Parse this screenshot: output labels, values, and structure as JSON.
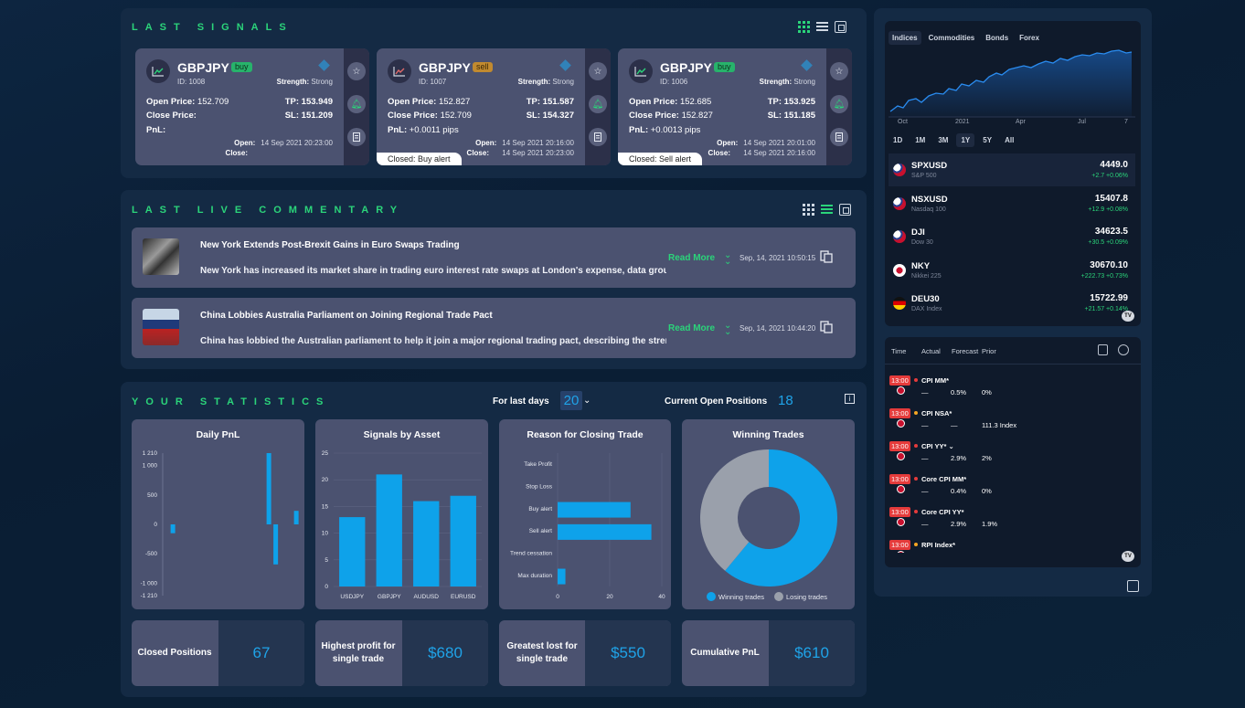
{
  "signals": {
    "title": "LAST SIGNALS",
    "cards": [
      {
        "pair": "GBPJPY",
        "type": "buy",
        "id": "ID: 1008",
        "strength_label": "Strength:",
        "strength": "Strong",
        "open_label": "Open Price:",
        "open": "152.709",
        "tp_label": "TP:",
        "tp": "153.949",
        "close_label": "Close Price:",
        "close": "",
        "sl_label": "SL:",
        "sl": "151.209",
        "pnl_label": "PnL:",
        "pnl": "",
        "open_time_label": "Open:",
        "open_time": "14 Sep 2021 20:23:00",
        "close_time_label": "Close:",
        "close_time": "",
        "closed_tag": ""
      },
      {
        "pair": "GBPJPY",
        "type": "sell",
        "id": "ID: 1007",
        "strength_label": "Strength:",
        "strength": "Strong",
        "open_label": "Open Price:",
        "open": "152.827",
        "tp_label": "TP:",
        "tp": "151.587",
        "close_label": "Close Price:",
        "close": "152.709",
        "sl_label": "SL:",
        "sl": "154.327",
        "pnl_label": "PnL:",
        "pnl": "+0.0011 pips",
        "open_time_label": "Open:",
        "open_time": "14 Sep 2021 20:16:00",
        "close_time_label": "Close:",
        "close_time": "14 Sep 2021 20:23:00",
        "closed_tag": "Closed: Buy alert"
      },
      {
        "pair": "GBPJPY",
        "type": "buy",
        "id": "ID: 1006",
        "strength_label": "Strength:",
        "strength": "Strong",
        "open_label": "Open Price:",
        "open": "152.685",
        "tp_label": "TP:",
        "tp": "153.925",
        "close_label": "Close Price:",
        "close": "152.827",
        "sl_label": "SL:",
        "sl": "151.185",
        "pnl_label": "PnL:",
        "pnl": "+0.0013 pips",
        "open_time_label": "Open:",
        "open_time": "14 Sep 2021 20:01:00",
        "close_time_label": "Close:",
        "close_time": "14 Sep 2021 20:16:00",
        "closed_tag": "Closed: Sell alert"
      }
    ]
  },
  "commentary": {
    "title": "LAST LIVE COMMENTARY",
    "read_more": "Read More",
    "items": [
      {
        "title": "New York Extends Post-Brexit Gains in Euro Swaps Trading",
        "body": "New York has increased its market share in trading euro interest rate swaps at London's expense, data group OSTTRA",
        "date": "Sep, 14, 2021 10:50:15"
      },
      {
        "title": "China Lobbies Australia Parliament on Joining Regional Trade Pact",
        "body": "China has lobbied the Australian parliament to help it join a major regional trading pact, describing the strength of",
        "date": "Sep, 14, 2021 10:44:20"
      }
    ]
  },
  "stats": {
    "title": "YOUR STATISTICS",
    "for_last_days_label": "For last days",
    "for_last_days": "20",
    "open_positions_label": "Current Open Positions",
    "open_positions": "18",
    "kpis": [
      {
        "label": "Closed Positions",
        "value": "67"
      },
      {
        "label": "Highest profit for single trade",
        "value": "$680"
      },
      {
        "label": "Greatest lost for single trade",
        "value": "$550"
      },
      {
        "label": "Cumulative PnL",
        "value": "$610"
      }
    ]
  },
  "chart_data": [
    {
      "type": "bar",
      "title": "Daily PnL",
      "yticks": [
        "1 210",
        "1 000",
        "500",
        "0",
        "-500",
        "-1 000",
        "-1 210"
      ],
      "ylim": [
        -1210,
        1210
      ],
      "x": [
        1,
        2,
        3,
        4,
        5,
        6,
        7,
        8,
        9,
        10,
        11,
        12,
        13,
        14,
        15,
        16,
        17,
        18,
        19,
        20
      ],
      "values": [
        0,
        -150,
        0,
        0,
        0,
        0,
        0,
        0,
        0,
        0,
        0,
        0,
        0,
        0,
        0,
        1210,
        -680,
        0,
        0,
        230
      ]
    },
    {
      "type": "bar",
      "title": "Signals by Asset",
      "categories": [
        "USDJPY",
        "GBPJPY",
        "AUDUSD",
        "EURUSD"
      ],
      "values": [
        13,
        21,
        16,
        17
      ],
      "ylim": [
        0,
        25
      ],
      "yticks": [
        "0",
        "5",
        "10",
        "15",
        "20",
        "25"
      ]
    },
    {
      "type": "bar",
      "orientation": "horizontal",
      "title": "Reason for Closing Trade",
      "categories": [
        "Take Profit",
        "Stop Loss",
        "Buy alert",
        "Sell alert",
        "Trend cessation",
        "Max duration"
      ],
      "values": [
        0,
        0,
        28,
        36,
        0,
        3
      ],
      "xlim": [
        0,
        40
      ],
      "xticks": [
        "0",
        "20",
        "40"
      ]
    },
    {
      "type": "pie",
      "title": "Winning Trades",
      "labels": [
        "Winning trades",
        "Losing trades"
      ],
      "values": [
        61,
        39
      ],
      "colors": [
        "#0ea2ea",
        "#9aa0ab"
      ]
    }
  ],
  "market": {
    "tabs": [
      "Indices",
      "Commodities",
      "Bonds",
      "Forex"
    ],
    "x_labels": [
      "Oct",
      "2021",
      "Apr",
      "Jul",
      "7"
    ],
    "ranges": [
      "1D",
      "1M",
      "3M",
      "1Y",
      "5Y",
      "All"
    ],
    "quotes": [
      {
        "sym": "SPXUSD",
        "name": "S&P 500",
        "price": "4449.0",
        "change": "+2.7  +0.06%",
        "flag": "us"
      },
      {
        "sym": "NSXUSD",
        "name": "Nasdaq 100",
        "price": "15407.8",
        "change": "+12.9  +0.08%",
        "flag": "us"
      },
      {
        "sym": "DJI",
        "name": "Dow 30",
        "price": "34623.5",
        "change": "+30.5  +0.09%",
        "flag": "us"
      },
      {
        "sym": "NKY",
        "name": "Nikkei 225",
        "price": "30670.10",
        "change": "+222.73  +0.73%",
        "flag": "jp"
      },
      {
        "sym": "DEU30",
        "name": "DAX Index",
        "price": "15722.99",
        "change": "+21.57  +0.14%",
        "flag": "de"
      }
    ]
  },
  "calendar": {
    "headers": [
      "Time",
      "Actual",
      "Forecast",
      "Prior"
    ],
    "events": [
      {
        "time": "13:00",
        "name": "CPI MM*",
        "actual": "—",
        "forecast": "0.5%",
        "prior": "0%",
        "dot": "#e53b3b"
      },
      {
        "time": "13:00",
        "name": "CPI NSA*",
        "actual": "—",
        "forecast": "—",
        "prior": "111.3 Index",
        "dot": "#f5a623"
      },
      {
        "time": "13:00",
        "name": "CPI YY* ⌄",
        "actual": "—",
        "forecast": "2.9%",
        "prior": "2%",
        "dot": "#e53b3b"
      },
      {
        "time": "13:00",
        "name": "Core CPI MM*",
        "actual": "—",
        "forecast": "0.4%",
        "prior": "0%",
        "dot": "#e53b3b"
      },
      {
        "time": "13:00",
        "name": "Core CPI YY*",
        "actual": "—",
        "forecast": "2.9%",
        "prior": "1.9%",
        "dot": "#e53b3b"
      },
      {
        "time": "13:00",
        "name": "RPI Index*",
        "actual": "",
        "forecast": "",
        "prior": "",
        "dot": "#f5a623"
      }
    ]
  }
}
